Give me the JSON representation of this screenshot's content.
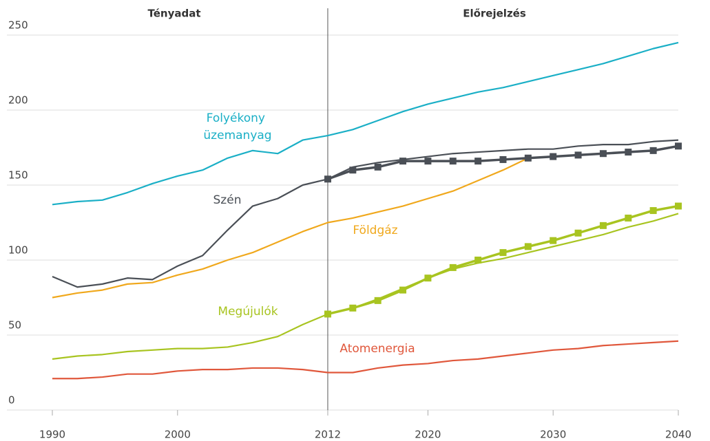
{
  "chart_data": {
    "type": "line",
    "headers": [
      "Tényadat",
      "Előrejelzés"
    ],
    "divider": 2012,
    "x": [
      1990,
      1992,
      1994,
      1996,
      1998,
      2000,
      2002,
      2004,
      2006,
      2008,
      2010,
      2012,
      2014,
      2016,
      2018,
      2020,
      2022,
      2024,
      2026,
      2028,
      2030,
      2032,
      2034,
      2036,
      2038,
      2040
    ],
    "series": [
      {
        "name": "Folyékony üzemanyag",
        "color": "#1aafc6",
        "values": [
          137,
          139,
          140,
          145,
          151,
          156,
          160,
          168,
          173,
          171,
          180,
          183,
          187,
          193,
          199,
          204,
          208,
          212,
          215,
          219,
          223,
          227,
          231,
          236,
          241,
          245
        ]
      },
      {
        "name": "Szén",
        "color": "#4a4f56",
        "values": [
          89,
          82,
          84,
          88,
          87,
          96,
          103,
          120,
          136,
          141,
          150,
          154,
          162,
          165,
          167,
          169,
          171,
          172,
          173,
          174,
          174,
          176,
          177,
          177,
          179,
          180
        ]
      },
      {
        "name": "Földgáz",
        "color": "#f0a81c",
        "values": [
          75,
          78,
          80,
          84,
          85,
          90,
          94,
          100,
          105,
          112,
          119,
          125,
          128,
          132,
          136,
          141,
          146,
          153,
          160,
          168,
          null,
          null,
          null,
          null,
          null,
          null
        ]
      },
      {
        "name": "Megújulók",
        "color": "#a8c420",
        "values": [
          34,
          36,
          37,
          39,
          40,
          41,
          41,
          42,
          45,
          49,
          57,
          64,
          68,
          74,
          81,
          88,
          94,
          98,
          101,
          105,
          109,
          113,
          117,
          122,
          126,
          131
        ]
      },
      {
        "name": "Atomenergia",
        "color": "#e0573b",
        "values": [
          21,
          21,
          22,
          24,
          24,
          26,
          27,
          27,
          28,
          28,
          27,
          25,
          25,
          28,
          30,
          31,
          33,
          34,
          36,
          38,
          40,
          41,
          43,
          44,
          45,
          46
        ]
      },
      {
        "color": "#4a4f56",
        "marker": "square",
        "values": [
          null,
          null,
          null,
          null,
          null,
          null,
          null,
          null,
          null,
          null,
          null,
          154,
          160,
          162,
          166,
          166,
          166,
          166,
          167,
          168,
          169,
          170,
          171,
          172,
          173,
          176
        ]
      },
      {
        "color": "#a8c420",
        "marker": "square",
        "values": [
          null,
          null,
          null,
          null,
          null,
          null,
          null,
          null,
          null,
          null,
          null,
          64,
          68,
          73,
          80,
          88,
          95,
          100,
          105,
          109,
          113,
          118,
          123,
          128,
          133,
          136
        ]
      }
    ],
    "xlim": [
      1990,
      2040
    ],
    "ylim": [
      0,
      250
    ],
    "xticks": [
      1990,
      2000,
      2012,
      2020,
      2030,
      2040
    ],
    "yticks": [
      0,
      50,
      100,
      150,
      200,
      250
    ],
    "grid": true
  }
}
